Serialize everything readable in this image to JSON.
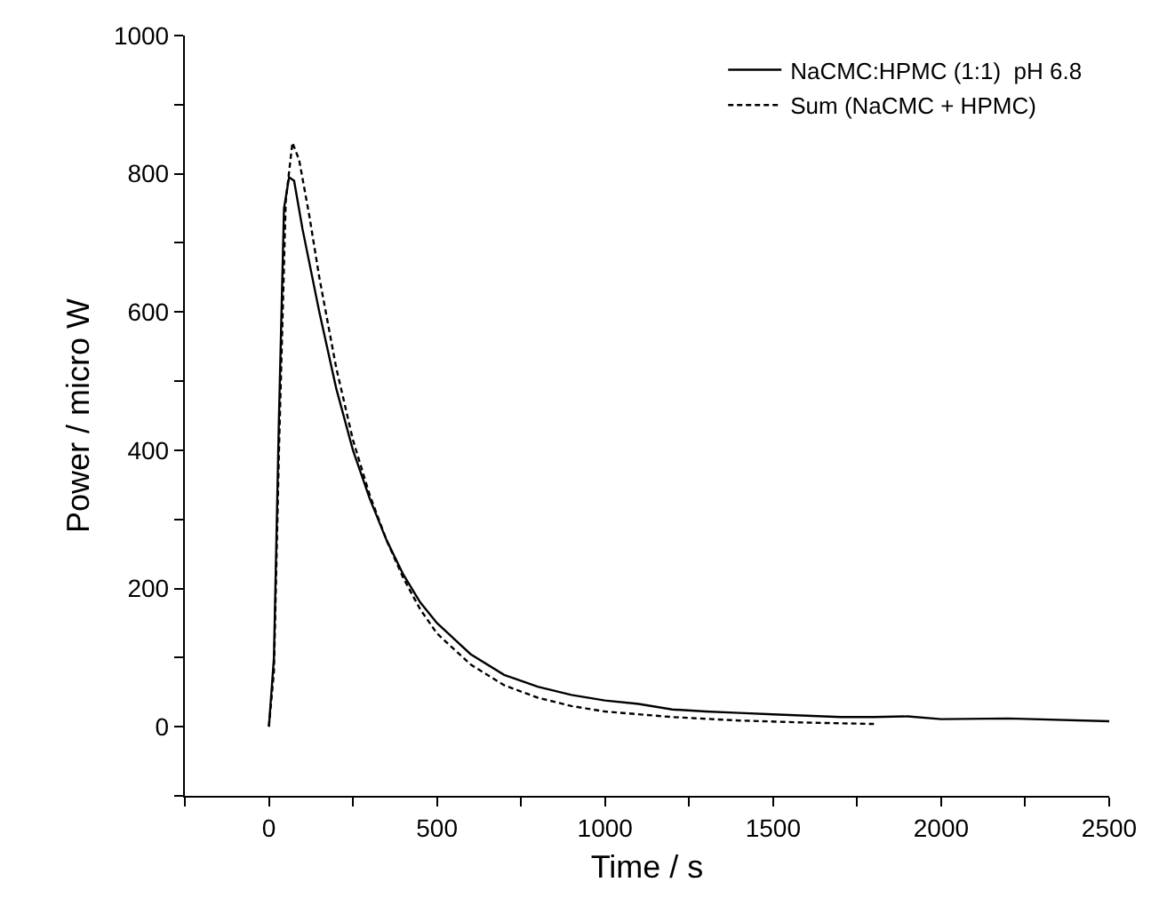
{
  "chart_data": {
    "type": "line",
    "xlabel": "Time / s",
    "ylabel": "Power / micro W",
    "xlim": [
      -250,
      2500
    ],
    "xticks": [
      {
        "value": -250,
        "label": null
      },
      0,
      {
        "value": 250,
        "label": null
      },
      500,
      {
        "value": 750,
        "label": null
      },
      1000,
      {
        "value": 1250,
        "label": null
      },
      1500,
      {
        "value": 1750,
        "label": null
      },
      2000,
      {
        "value": 2250,
        "label": null
      },
      2500
    ],
    "ylim": [
      -100,
      1000
    ],
    "yticks": [
      {
        "value": -100,
        "label": null
      },
      0,
      {
        "value": 100,
        "label": null
      },
      200,
      {
        "value": 300,
        "label": null
      },
      400,
      {
        "value": 500,
        "label": null
      },
      600,
      {
        "value": 700,
        "label": null
      },
      800,
      {
        "value": 900,
        "label": null
      },
      1000
    ],
    "grid": false,
    "legend": "top right",
    "marker": "none",
    "series": [
      {
        "name": "NaCMC:HPMC (1:1)  pH 6.8",
        "color": "#000000",
        "line_style": "solid",
        "x": [
          0,
          15,
          30,
          45,
          60,
          75,
          100,
          150,
          200,
          250,
          300,
          350,
          400,
          450,
          500,
          600,
          700,
          800,
          900,
          1000,
          1100,
          1200,
          1300,
          1400,
          1500,
          1700,
          1800,
          1900,
          2000,
          2200,
          2500
        ],
        "values": [
          0,
          100,
          450,
          750,
          795,
          790,
          720,
          600,
          490,
          400,
          330,
          270,
          220,
          180,
          150,
          105,
          75,
          58,
          46,
          38,
          33,
          25,
          22,
          20,
          18,
          14,
          14,
          15,
          11,
          12,
          8
        ]
      },
      {
        "name": "Sum (NaCMC + HPMC)",
        "color": "#000000",
        "line_style": "dashed",
        "x": [
          0,
          15,
          30,
          50,
          70,
          90,
          120,
          150,
          200,
          250,
          300,
          350,
          400,
          450,
          500,
          600,
          700,
          800,
          900,
          1000,
          1200,
          1400,
          1600,
          1800
        ],
        "values": [
          0,
          80,
          400,
          760,
          845,
          820,
          740,
          650,
          520,
          415,
          335,
          270,
          215,
          170,
          135,
          90,
          60,
          42,
          30,
          22,
          14,
          9,
          6,
          4
        ]
      }
    ]
  }
}
